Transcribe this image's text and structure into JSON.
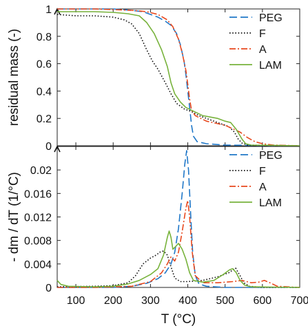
{
  "chart_data": [
    {
      "type": "line",
      "ylabel": "residual mass (-)",
      "xlim": [
        50,
        700
      ],
      "ylim": [
        0,
        1
      ],
      "yticks": [
        "0",
        "0.2",
        "0.4",
        "0.6",
        "0.8",
        "1"
      ],
      "legend_position": "top-right",
      "series": [
        {
          "name": "PEG",
          "color": "#1f77c8",
          "style": "dashed",
          "points": [
            [
              50,
              1.0
            ],
            [
              100,
              1.0
            ],
            [
              150,
              1.0
            ],
            [
              200,
              1.0
            ],
            [
              250,
              0.99
            ],
            [
              280,
              0.98
            ],
            [
              300,
              0.96
            ],
            [
              320,
              0.94
            ],
            [
              340,
              0.91
            ],
            [
              355,
              0.88
            ],
            [
              370,
              0.82
            ],
            [
              380,
              0.74
            ],
            [
              390,
              0.62
            ],
            [
              395,
              0.52
            ],
            [
              400,
              0.4
            ],
            [
              405,
              0.28
            ],
            [
              410,
              0.15
            ],
            [
              415,
              0.07
            ],
            [
              425,
              0.03
            ],
            [
              450,
              0.015
            ],
            [
              500,
              0.005
            ],
            [
              700,
              0.0
            ]
          ]
        },
        {
          "name": "F",
          "color": "#111111",
          "style": "dotted",
          "points": [
            [
              50,
              0.96
            ],
            [
              100,
              0.95
            ],
            [
              150,
              0.95
            ],
            [
              200,
              0.94
            ],
            [
              230,
              0.92
            ],
            [
              250,
              0.89
            ],
            [
              270,
              0.82
            ],
            [
              290,
              0.7
            ],
            [
              305,
              0.62
            ],
            [
              320,
              0.56
            ],
            [
              340,
              0.46
            ],
            [
              355,
              0.38
            ],
            [
              370,
              0.31
            ],
            [
              390,
              0.27
            ],
            [
              410,
              0.25
            ],
            [
              430,
              0.22
            ],
            [
              460,
              0.19
            ],
            [
              490,
              0.16
            ],
            [
              510,
              0.14
            ],
            [
              525,
              0.1
            ],
            [
              535,
              0.05
            ],
            [
              545,
              0.02
            ],
            [
              560,
              0.005
            ],
            [
              700,
              0.0
            ]
          ]
        },
        {
          "name": "A",
          "color": "#e8471c",
          "style": "dashdot",
          "points": [
            [
              50,
              1.0
            ],
            [
              150,
              1.0
            ],
            [
              250,
              0.99
            ],
            [
              290,
              0.98
            ],
            [
              320,
              0.96
            ],
            [
              345,
              0.92
            ],
            [
              360,
              0.87
            ],
            [
              375,
              0.78
            ],
            [
              385,
              0.68
            ],
            [
              395,
              0.55
            ],
            [
              400,
              0.45
            ],
            [
              405,
              0.34
            ],
            [
              410,
              0.26
            ],
            [
              420,
              0.22
            ],
            [
              450,
              0.18
            ],
            [
              500,
              0.15
            ],
            [
              540,
              0.1
            ],
            [
              560,
              0.06
            ],
            [
              580,
              0.03
            ],
            [
              600,
              0.015
            ],
            [
              630,
              0.005
            ],
            [
              700,
              0.0
            ]
          ]
        },
        {
          "name": "LAM",
          "color": "#77b23b",
          "style": "solid",
          "points": [
            [
              50,
              0.98
            ],
            [
              100,
              0.98
            ],
            [
              150,
              0.98
            ],
            [
              200,
              0.975
            ],
            [
              240,
              0.965
            ],
            [
              270,
              0.95
            ],
            [
              290,
              0.9
            ],
            [
              310,
              0.82
            ],
            [
              330,
              0.7
            ],
            [
              345,
              0.58
            ],
            [
              355,
              0.46
            ],
            [
              365,
              0.38
            ],
            [
              380,
              0.32
            ],
            [
              395,
              0.28
            ],
            [
              410,
              0.26
            ],
            [
              440,
              0.22
            ],
            [
              480,
              0.2
            ],
            [
              500,
              0.18
            ],
            [
              515,
              0.17
            ],
            [
              530,
              0.12
            ],
            [
              545,
              0.05
            ],
            [
              555,
              0.015
            ],
            [
              570,
              0.005
            ],
            [
              700,
              0.0
            ]
          ]
        }
      ]
    },
    {
      "type": "line",
      "xlabel": "T  (°C)",
      "ylabel": "- dm / dT  (1/°C)",
      "xlim": [
        50,
        700
      ],
      "ylim": [
        0,
        0.024
      ],
      "yticks": [
        "0",
        "0.004",
        "0.008",
        "0.012",
        "0.016",
        "0.02"
      ],
      "xticks": [
        "100",
        "200",
        "300",
        "400",
        "500",
        "600",
        "700"
      ],
      "legend_position": "top-right",
      "series": [
        {
          "name": "PEG",
          "color": "#1f77c8",
          "style": "dashed",
          "points": [
            [
              50,
              0.0
            ],
            [
              200,
              0.0
            ],
            [
              250,
              0.0002
            ],
            [
              290,
              0.0007
            ],
            [
              320,
              0.0015
            ],
            [
              340,
              0.0025
            ],
            [
              355,
              0.004
            ],
            [
              365,
              0.006
            ],
            [
              375,
              0.01
            ],
            [
              385,
              0.016
            ],
            [
              392,
              0.021
            ],
            [
              397,
              0.0233
            ],
            [
              402,
              0.02
            ],
            [
              408,
              0.012
            ],
            [
              413,
              0.006
            ],
            [
              420,
              0.002
            ],
            [
              430,
              0.0006
            ],
            [
              450,
              0.0002
            ],
            [
              500,
              0.0
            ],
            [
              700,
              0.0
            ]
          ]
        },
        {
          "name": "F",
          "color": "#111111",
          "style": "dotted",
          "points": [
            [
              50,
              0.0001
            ],
            [
              150,
              0.0002
            ],
            [
              200,
              0.0003
            ],
            [
              240,
              0.0008
            ],
            [
              260,
              0.002
            ],
            [
              280,
              0.004
            ],
            [
              300,
              0.005
            ],
            [
              315,
              0.0055
            ],
            [
              325,
              0.006
            ],
            [
              335,
              0.0062
            ],
            [
              345,
              0.0055
            ],
            [
              355,
              0.0035
            ],
            [
              365,
              0.0016
            ],
            [
              380,
              0.001
            ],
            [
              400,
              0.001
            ],
            [
              440,
              0.0012
            ],
            [
              480,
              0.0018
            ],
            [
              510,
              0.0025
            ],
            [
              528,
              0.0033
            ],
            [
              540,
              0.002
            ],
            [
              550,
              0.0008
            ],
            [
              565,
              0.0002
            ],
            [
              600,
              0.0
            ],
            [
              700,
              0.0
            ]
          ]
        },
        {
          "name": "A",
          "color": "#e8471c",
          "style": "dashdot",
          "points": [
            [
              50,
              0.0
            ],
            [
              150,
              0.0
            ],
            [
              250,
              0.0002
            ],
            [
              300,
              0.001
            ],
            [
              330,
              0.0025
            ],
            [
              345,
              0.004
            ],
            [
              355,
              0.0052
            ],
            [
              365,
              0.0045
            ],
            [
              375,
              0.006
            ],
            [
              385,
              0.0095
            ],
            [
              395,
              0.0135
            ],
            [
              400,
              0.0148
            ],
            [
              405,
              0.012
            ],
            [
              412,
              0.006
            ],
            [
              420,
              0.002
            ],
            [
              440,
              0.0008
            ],
            [
              480,
              0.0008
            ],
            [
              520,
              0.001
            ],
            [
              545,
              0.0012
            ],
            [
              570,
              0.0008
            ],
            [
              590,
              0.0009
            ],
            [
              605,
              0.0012
            ],
            [
              620,
              0.0008
            ],
            [
              640,
              0.0002
            ],
            [
              700,
              0.0
            ]
          ]
        },
        {
          "name": "LAM",
          "color": "#77b23b",
          "style": "solid",
          "points": [
            [
              50,
              0.0012
            ],
            [
              60,
              0.0005
            ],
            [
              80,
              0.0002
            ],
            [
              150,
              0.0001
            ],
            [
              200,
              0.0002
            ],
            [
              240,
              0.0006
            ],
            [
              270,
              0.0012
            ],
            [
              300,
              0.0022
            ],
            [
              320,
              0.0032
            ],
            [
              335,
              0.0055
            ],
            [
              345,
              0.0085
            ],
            [
              350,
              0.0096
            ],
            [
              355,
              0.0085
            ],
            [
              360,
              0.0065
            ],
            [
              368,
              0.007
            ],
            [
              375,
              0.0075
            ],
            [
              385,
              0.0065
            ],
            [
              395,
              0.0048
            ],
            [
              405,
              0.0025
            ],
            [
              415,
              0.0012
            ],
            [
              440,
              0.0009
            ],
            [
              470,
              0.0012
            ],
            [
              495,
              0.0022
            ],
            [
              512,
              0.003
            ],
            [
              520,
              0.0032
            ],
            [
              530,
              0.0025
            ],
            [
              540,
              0.0012
            ],
            [
              552,
              0.0004
            ],
            [
              570,
              0.0001
            ],
            [
              700,
              0.0
            ]
          ]
        }
      ]
    }
  ]
}
